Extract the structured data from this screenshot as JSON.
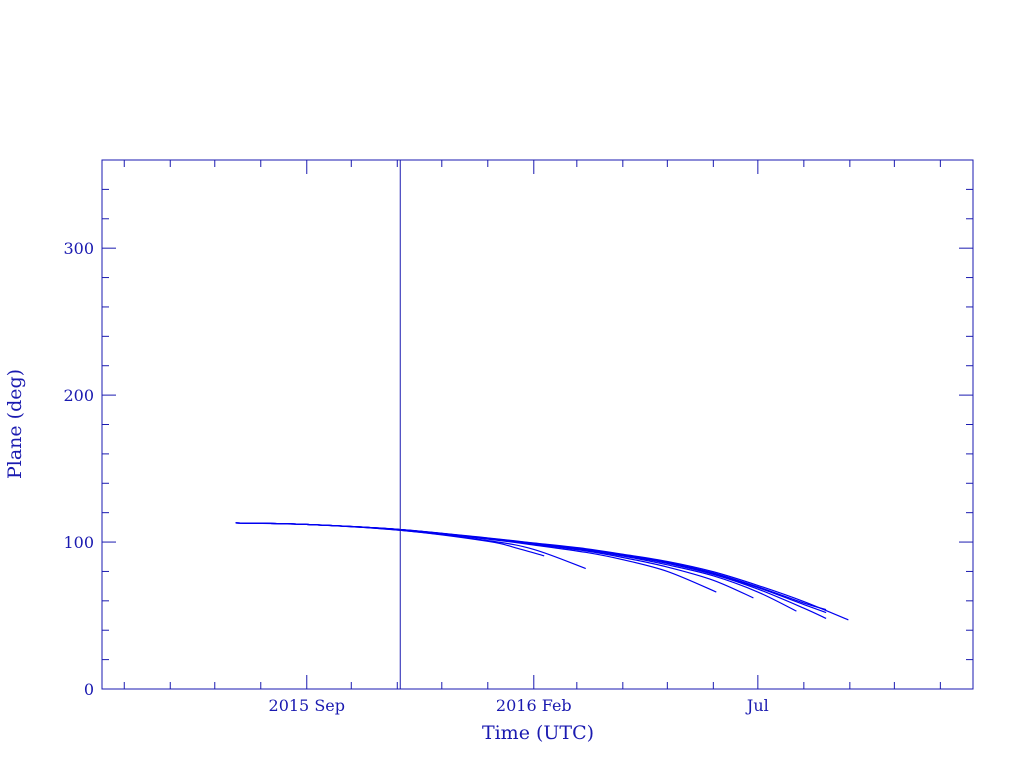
{
  "chart_data": {
    "type": "line",
    "title": "",
    "xlabel": "Time (UTC)",
    "ylabel": "Plane (deg)",
    "xlim": [
      "2015-04-16",
      "2016-11-23"
    ],
    "ylim": [
      0,
      360
    ],
    "grid": false,
    "x_ticks": [
      {
        "date": "2015-09-01",
        "label": "2015 Sep"
      },
      {
        "date": "2016-02-01",
        "label": "2016 Feb"
      },
      {
        "date": "2016-07-01",
        "label": "Jul"
      }
    ],
    "y_ticks": [
      0,
      100,
      200,
      300
    ],
    "y_minor_step": 20,
    "marker_line_date": "2015-11-03",
    "colors": {
      "axis": "#1a1ab0",
      "series": "#0000f0",
      "marker_line": "#1a1ab0"
    },
    "series": [
      {
        "points": [
          [
            "2015-07-15",
            113
          ],
          [
            "2015-09-01",
            112
          ],
          [
            "2015-11-03",
            108
          ],
          [
            "2016-01-01",
            100.5
          ],
          [
            "2016-01-20",
            96
          ],
          [
            "2016-02-08",
            90.6
          ]
        ]
      },
      {
        "points": [
          [
            "2015-07-15",
            113
          ],
          [
            "2015-09-01",
            112
          ],
          [
            "2015-11-03",
            108
          ],
          [
            "2016-01-01",
            101
          ],
          [
            "2016-02-01",
            95
          ],
          [
            "2016-03-07",
            82
          ]
        ]
      },
      {
        "points": [
          [
            "2015-07-15",
            113
          ],
          [
            "2015-09-01",
            112
          ],
          [
            "2015-11-03",
            108.3
          ],
          [
            "2016-01-01",
            102
          ],
          [
            "2016-02-01",
            98
          ],
          [
            "2016-03-07",
            93
          ],
          [
            "2016-04-01",
            88
          ],
          [
            "2016-05-01",
            80
          ],
          [
            "2016-06-03",
            66
          ]
        ]
      },
      {
        "points": [
          [
            "2015-07-15",
            113
          ],
          [
            "2015-09-01",
            112
          ],
          [
            "2015-11-03",
            108.4
          ],
          [
            "2016-01-01",
            102.2
          ],
          [
            "2016-02-01",
            98.5
          ],
          [
            "2016-03-07",
            94
          ],
          [
            "2016-04-01",
            89.5
          ],
          [
            "2016-05-01",
            83
          ],
          [
            "2016-06-01",
            74
          ],
          [
            "2016-06-28",
            62
          ]
        ]
      },
      {
        "points": [
          [
            "2015-07-15",
            113
          ],
          [
            "2015-09-01",
            112
          ],
          [
            "2015-11-03",
            108.5
          ],
          [
            "2016-01-01",
            102.4
          ],
          [
            "2016-02-01",
            98.8
          ],
          [
            "2016-03-07",
            94.5
          ],
          [
            "2016-04-01",
            90.5
          ],
          [
            "2016-05-01",
            84.5
          ],
          [
            "2016-06-01",
            77
          ],
          [
            "2016-07-01",
            66
          ],
          [
            "2016-07-27",
            53
          ]
        ]
      },
      {
        "points": [
          [
            "2015-07-15",
            113
          ],
          [
            "2015-09-01",
            112
          ],
          [
            "2015-11-03",
            108.5
          ],
          [
            "2016-01-01",
            102.5
          ],
          [
            "2016-02-01",
            99
          ],
          [
            "2016-03-07",
            95
          ],
          [
            "2016-04-01",
            91
          ],
          [
            "2016-05-01",
            85.5
          ],
          [
            "2016-06-01",
            78
          ],
          [
            "2016-07-01",
            68
          ],
          [
            "2016-08-01",
            55
          ],
          [
            "2016-08-16",
            48
          ]
        ]
      },
      {
        "points": [
          [
            "2015-07-15",
            113
          ],
          [
            "2015-09-01",
            112
          ],
          [
            "2015-11-03",
            108.5
          ],
          [
            "2016-01-01",
            102.5
          ],
          [
            "2016-02-01",
            99
          ],
          [
            "2016-03-07",
            95
          ],
          [
            "2016-04-01",
            91
          ],
          [
            "2016-05-01",
            86
          ],
          [
            "2016-06-01",
            78.5
          ],
          [
            "2016-07-01",
            69
          ],
          [
            "2016-08-01",
            57.5
          ],
          [
            "2016-08-16",
            52
          ]
        ]
      },
      {
        "points": [
          [
            "2015-07-15",
            113
          ],
          [
            "2015-09-01",
            112
          ],
          [
            "2015-11-03",
            108.5
          ],
          [
            "2016-01-01",
            102.6
          ],
          [
            "2016-02-01",
            99.2
          ],
          [
            "2016-03-07",
            95.2
          ],
          [
            "2016-04-01",
            91.3
          ],
          [
            "2016-05-01",
            86.3
          ],
          [
            "2016-06-01",
            79
          ],
          [
            "2016-07-01",
            69.5
          ],
          [
            "2016-08-01",
            58.5
          ],
          [
            "2016-08-16",
            54
          ]
        ]
      },
      {
        "points": [
          [
            "2015-07-15",
            113
          ],
          [
            "2015-09-01",
            112
          ],
          [
            "2015-11-03",
            108.6
          ],
          [
            "2016-01-01",
            102.8
          ],
          [
            "2016-02-01",
            99.4
          ],
          [
            "2016-03-07",
            95.5
          ],
          [
            "2016-04-01",
            91.7
          ],
          [
            "2016-05-01",
            86.8
          ],
          [
            "2016-06-01",
            79.8
          ],
          [
            "2016-07-01",
            70.5
          ],
          [
            "2016-08-01",
            59.5
          ],
          [
            "2016-08-31",
            47
          ]
        ]
      }
    ]
  }
}
